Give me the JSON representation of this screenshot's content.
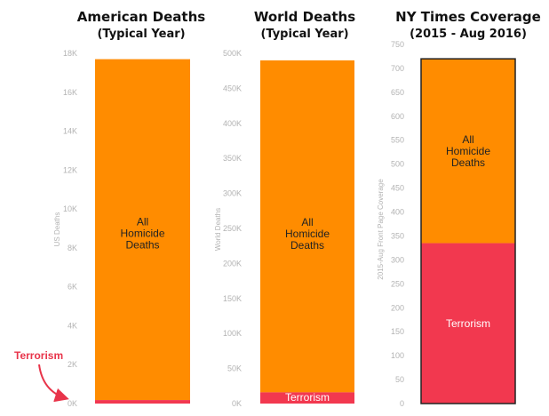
{
  "colors": {
    "homicide": "#ff8c00",
    "terrorism": "#f2384f",
    "axis_text": "#b3b3b3",
    "callout": "#e8344a",
    "bar_outline": "#222222"
  },
  "chart_data": [
    {
      "type": "bar",
      "stacked": true,
      "title": "American Deaths",
      "subtitle": "(Typical Year)",
      "ylabel": "US Deaths",
      "ylim": [
        0,
        18000
      ],
      "yticks": [
        0,
        2000,
        4000,
        6000,
        8000,
        10000,
        12000,
        14000,
        16000,
        18000
      ],
      "ytick_labels": [
        "0K",
        "2K",
        "4K",
        "6K",
        "8K",
        "10K",
        "12K",
        "14K",
        "16K",
        "18K"
      ],
      "series": [
        {
          "name": "Terrorism",
          "values": [
            180
          ]
        },
        {
          "name": "All Homicide Deaths",
          "values": [
            17520
          ]
        }
      ],
      "segment_labels": {
        "homicide": [
          "All",
          "Homicide",
          "Deaths"
        ],
        "terrorism": ""
      },
      "annotation": "Terrorism",
      "outlined": false,
      "grid": false
    },
    {
      "type": "bar",
      "stacked": true,
      "title": "World Deaths",
      "subtitle": "(Typical Year)",
      "ylabel": "World Deaths",
      "ylim": [
        0,
        500000
      ],
      "yticks": [
        0,
        50000,
        100000,
        150000,
        200000,
        250000,
        300000,
        350000,
        400000,
        450000,
        500000
      ],
      "ytick_labels": [
        "0K",
        "50K",
        "100K",
        "150K",
        "200K",
        "250K",
        "300K",
        "350K",
        "400K",
        "450K",
        "500K"
      ],
      "series": [
        {
          "name": "Terrorism",
          "values": [
            16000
          ]
        },
        {
          "name": "All Homicide Deaths",
          "values": [
            474000
          ]
        }
      ],
      "segment_labels": {
        "homicide": [
          "All",
          "Homicide",
          "Deaths"
        ],
        "terrorism": "Terrorism"
      },
      "outlined": false,
      "grid": false
    },
    {
      "type": "bar",
      "stacked": true,
      "title": "NY Times Coverage",
      "subtitle": "(2015 - Aug 2016)",
      "ylabel": "2015-Aug Front Page Coverage",
      "ylim": [
        0,
        750
      ],
      "yticks": [
        0,
        50,
        100,
        150,
        200,
        250,
        300,
        350,
        400,
        450,
        500,
        550,
        600,
        650,
        700,
        750
      ],
      "ytick_labels": [
        "0",
        "50",
        "100",
        "150",
        "200",
        "250",
        "300",
        "350",
        "400",
        "450",
        "500",
        "550",
        "600",
        "650",
        "700",
        "750"
      ],
      "series": [
        {
          "name": "Terrorism",
          "values": [
            335
          ]
        },
        {
          "name": "All Homicide Deaths",
          "values": [
            385
          ]
        }
      ],
      "segment_labels": {
        "homicide": [
          "All",
          "Homicide",
          "Deaths"
        ],
        "terrorism": "Terrorism"
      },
      "outlined": true,
      "grid": false
    }
  ]
}
